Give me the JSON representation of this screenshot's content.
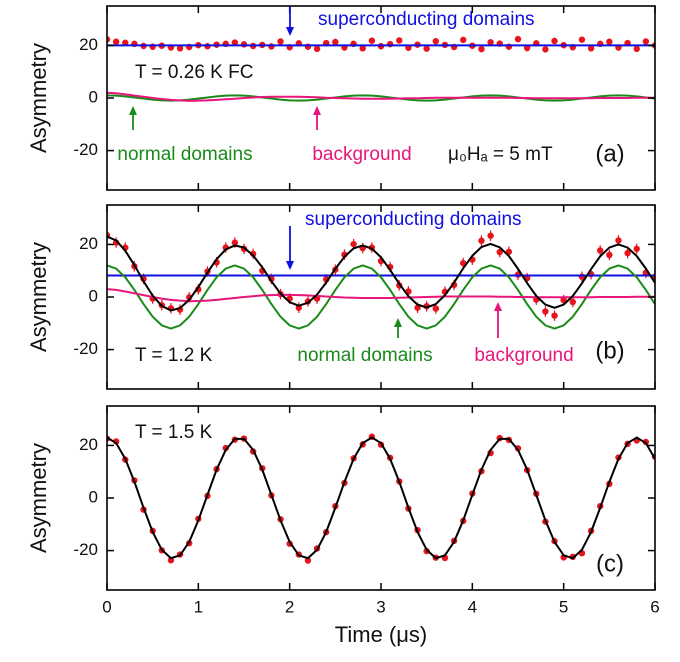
{
  "chart_data": [
    {
      "type": "line",
      "ylabel": "Asymmetry",
      "panel_label": "(a)",
      "annotations": [
        "T = 0.26 K  FC",
        "μ₀Hₐ = 5 mT"
      ],
      "xlim": [
        0,
        6
      ],
      "xticks": [
        0,
        1,
        2,
        3,
        4,
        5,
        6
      ],
      "ylim": [
        -35,
        35
      ],
      "yticks": [
        -20,
        0,
        20
      ],
      "x": [
        0,
        0.1,
        0.2,
        0.3,
        0.4,
        0.5,
        0.6,
        0.7,
        0.8,
        0.9,
        1,
        1.1,
        1.2,
        1.3,
        1.4,
        1.5,
        1.6,
        1.7,
        1.8,
        1.9,
        2,
        2.1,
        2.2,
        2.3,
        2.4,
        2.5,
        2.6,
        2.7,
        2.8,
        2.9,
        3,
        3.1,
        3.2,
        3.3,
        3.4,
        3.5,
        3.6,
        3.7,
        3.8,
        3.9,
        4,
        4.1,
        4.2,
        4.3,
        4.4,
        4.5,
        4.6,
        4.7,
        4.8,
        4.9,
        5,
        5.1,
        5.2,
        5.3,
        5.4,
        5.5,
        5.6,
        5.7,
        5.8,
        5.9,
        6
      ],
      "series": [
        {
          "color": "#e8141b",
          "mode": "markers",
          "error": 1.2,
          "values": [
            22.3,
            21.4,
            21.0,
            20.6,
            19.8,
            19.5,
            19.9,
            19.2,
            18.9,
            19.4,
            20.1,
            19.7,
            20.3,
            20.6,
            21.1,
            20.4,
            19.8,
            20.2,
            19.6,
            21.5,
            19.3,
            20.8,
            19.5,
            18.7,
            20.9,
            21.3,
            19.2,
            20.6,
            18.9,
            21.8,
            19.7,
            20.5,
            21.9,
            19.1,
            20.3,
            18.8,
            21.6,
            20.2,
            19.4,
            22.1,
            19.9,
            18.6,
            21.2,
            20.7,
            19.5,
            22.4,
            19.0,
            20.8,
            18.5,
            21.7,
            20.1,
            19.3,
            22.2,
            18.9,
            20.6,
            21.4,
            19.2,
            20.9,
            18.7,
            21.5,
            20.0
          ]
        },
        {
          "name": "superconducting domains",
          "color": "#1010e0",
          "mode": "lines",
          "x": [
            0,
            6
          ],
          "values": [
            20,
            20
          ]
        },
        {
          "name": "normal domains",
          "color": "#1a8a1a",
          "mode": "lines",
          "values": [
            1,
            0.9,
            0.6,
            0.2,
            -0.2,
            -0.6,
            -0.9,
            -1,
            -0.9,
            -0.6,
            -0.2,
            0.2,
            0.6,
            0.9,
            1,
            0.9,
            0.6,
            0.2,
            -0.2,
            -0.6,
            -0.9,
            -1,
            -0.9,
            -0.6,
            -0.2,
            0.2,
            0.6,
            0.9,
            1,
            0.9,
            0.6,
            0.2,
            -0.2,
            -0.6,
            -0.9,
            -1,
            -0.9,
            -0.6,
            -0.2,
            0.2,
            0.6,
            0.9,
            1,
            0.9,
            0.6,
            0.2,
            -0.2,
            -0.6,
            -0.9,
            -1,
            -0.9,
            -0.6,
            -0.2,
            0.2,
            0.6,
            0.9,
            1,
            0.9,
            0.6,
            0.2,
            -0.2
          ]
        },
        {
          "name": "background",
          "color": "#e8157a",
          "mode": "lines",
          "values": [
            2.0,
            1.8,
            1.4,
            0.9,
            0.5,
            0,
            -0.4,
            -0.7,
            -0.9,
            -1.1,
            -1.0,
            -0.9,
            -0.7,
            -0.5,
            -0.3,
            0,
            0.2,
            0.4,
            0.5,
            0.5,
            0.5,
            0.5,
            0.4,
            0.3,
            0.1,
            0,
            -0.1,
            -0.2,
            -0.3,
            -0.3,
            -0.3,
            -0.3,
            -0.2,
            -0.1,
            -0.1,
            0,
            0.1,
            0.1,
            0.1,
            0.1,
            0.1,
            0.1,
            0.1,
            0.1,
            0.1,
            0,
            0,
            -0.1,
            -0.1,
            -0.1,
            -0.1,
            -0.1,
            -0.1,
            -0.1,
            0,
            0,
            0,
            0,
            0.1,
            0.1,
            0.1
          ]
        }
      ]
    },
    {
      "type": "line",
      "ylabel": "Asymmetry",
      "panel_label": "(b)",
      "annotations": [
        "T = 1.2 K"
      ],
      "xlim": [
        0,
        6
      ],
      "xticks": [
        0,
        1,
        2,
        3,
        4,
        5,
        6
      ],
      "ylim": [
        -35,
        35
      ],
      "yticks": [
        -20,
        0,
        20
      ],
      "x": [
        0,
        0.1,
        0.2,
        0.3,
        0.4,
        0.5,
        0.6,
        0.7,
        0.8,
        0.9,
        1,
        1.1,
        1.2,
        1.3,
        1.4,
        1.5,
        1.6,
        1.7,
        1.8,
        1.9,
        2,
        2.1,
        2.2,
        2.3,
        2.4,
        2.5,
        2.6,
        2.7,
        2.8,
        2.9,
        3,
        3.1,
        3.2,
        3.3,
        3.4,
        3.5,
        3.6,
        3.7,
        3.8,
        3.9,
        4,
        4.1,
        4.2,
        4.3,
        4.4,
        4.5,
        4.6,
        4.7,
        4.8,
        4.9,
        5,
        5.1,
        5.2,
        5.3,
        5.4,
        5.5,
        5.6,
        5.7,
        5.8,
        5.9,
        6
      ],
      "series": [
        {
          "color": "#e8141b",
          "mode": "markers",
          "error": 2,
          "values": [
            23.5,
            20.7,
            18.8,
            11.7,
            6.9,
            -0.6,
            -3.1,
            -4.3,
            -4.8,
            -0.1,
            2.9,
            9.7,
            13.2,
            18.8,
            20.7,
            18.3,
            16.4,
            10.0,
            6.9,
            1.1,
            -0.6,
            -4.1,
            -1.7,
            -0.6,
            6.7,
            10.4,
            16.1,
            20.1,
            18.6,
            18.8,
            13.7,
            11.4,
            4.4,
            2.1,
            -4.1,
            -3.5,
            -4.4,
            2.0,
            4.6,
            12.9,
            14.2,
            21.4,
            23.3,
            17.1,
            17.2,
            8.5,
            7.2,
            -1.0,
            -5.5,
            -7.1,
            -1.2,
            -1.9,
            7.7,
            8.7,
            17.7,
            16.0,
            21.5,
            16.7,
            18.3,
            9.2,
            7.7
          ]
        },
        {
          "name": "superconducting domains",
          "color": "#1010e0",
          "mode": "lines",
          "x": [
            0,
            6
          ],
          "values": [
            8.2,
            8.2
          ]
        },
        {
          "name": "normal domains",
          "color": "#1a8a1a",
          "mode": "lines",
          "values": [
            12,
            10.8,
            7.5,
            2.7,
            -2.7,
            -7.5,
            -10.8,
            -12,
            -10.8,
            -7.5,
            -2.7,
            2.7,
            7.5,
            10.8,
            12,
            10.8,
            7.5,
            2.7,
            -2.7,
            -7.5,
            -10.8,
            -12,
            -10.8,
            -7.5,
            -2.7,
            2.7,
            7.5,
            10.8,
            12,
            10.8,
            7.5,
            2.7,
            -2.7,
            -7.5,
            -10.8,
            -12,
            -10.8,
            -7.5,
            -2.7,
            2.7,
            7.5,
            10.8,
            12,
            10.8,
            7.5,
            2.7,
            -2.7,
            -7.5,
            -10.8,
            -12,
            -10.8,
            -7.5,
            -2.7,
            2.7,
            7.5,
            10.8,
            12,
            10.8,
            7.5,
            2.7,
            -2.7
          ]
        },
        {
          "name": "background",
          "color": "#e8157a",
          "mode": "lines",
          "values": [
            3.0,
            2.7,
            2.1,
            1.4,
            0.7,
            0,
            -0.6,
            -1.1,
            -1.4,
            -1.6,
            -1.5,
            -1.4,
            -1.1,
            -0.7,
            -0.4,
            0,
            0.3,
            0.6,
            0.7,
            0.8,
            0.8,
            0.7,
            0.6,
            0.4,
            0.2,
            0,
            -0.2,
            -0.3,
            -0.4,
            -0.4,
            -0.4,
            -0.4,
            -0.3,
            -0.2,
            -0.1,
            0,
            0.1,
            0.2,
            0.2,
            0.2,
            0.2,
            0.2,
            0.2,
            0.1,
            0.1,
            0,
            0,
            -0.1,
            -0.1,
            -0.1,
            -0.1,
            -0.1,
            -0.1,
            -0.1,
            0,
            0,
            0,
            0,
            0.1,
            0.1,
            0.1
          ]
        },
        {
          "color": "#000000",
          "mode": "lines",
          "values": [
            23.0,
            21.5,
            17.6,
            12.1,
            6.0,
            0.5,
            -3.4,
            -5.1,
            -4.2,
            -1.1,
            3.8,
            9.3,
            14.4,
            18.1,
            19.6,
            18.8,
            15.8,
            11.3,
            6.0,
            1.3,
            -2.0,
            -3.3,
            -2.2,
            0.9,
            5.5,
            10.7,
            15.3,
            18.5,
            19.6,
            18.4,
            15.1,
            10.3,
            5.0,
            0.3,
            -2.9,
            -4.0,
            -2.7,
            0.7,
            5.5,
            10.9,
            15.7,
            19.0,
            20.2,
            18.9,
            15.6,
            10.7,
            5.3,
            0.4,
            -2.9,
            -4.1,
            -2.9,
            0.4,
            5.2,
            10.6,
            15.5,
            18.8,
            20.0,
            18.8,
            15.6,
            10.8,
            5.4
          ]
        }
      ]
    },
    {
      "type": "line",
      "ylabel": "Asymmetry",
      "xlabel": "Time (μs)",
      "panel_label": "(c)",
      "annotations": [
        "T = 1.5 K"
      ],
      "xlim": [
        0,
        6
      ],
      "xticks": [
        0,
        1,
        2,
        3,
        4,
        5,
        6
      ],
      "ylim": [
        -35,
        35
      ],
      "yticks": [
        -20,
        0,
        20
      ],
      "x": [
        0,
        0.1,
        0.2,
        0.3,
        0.4,
        0.5,
        0.6,
        0.7,
        0.8,
        0.9,
        1,
        1.1,
        1.2,
        1.3,
        1.4,
        1.5,
        1.6,
        1.7,
        1.8,
        1.9,
        2,
        2.1,
        2.2,
        2.3,
        2.4,
        2.5,
        2.6,
        2.7,
        2.8,
        2.9,
        3,
        3.1,
        3.2,
        3.3,
        3.4,
        3.5,
        3.6,
        3.7,
        3.8,
        3.9,
        4,
        4.1,
        4.2,
        4.3,
        4.4,
        4.5,
        4.6,
        4.7,
        4.8,
        4.9,
        5,
        5.1,
        5.2,
        5.3,
        5.4,
        5.5,
        5.6,
        5.7,
        5.8,
        5.9,
        6
      ],
      "series": [
        {
          "color": "#e8141b",
          "mode": "markers",
          "error": 1,
          "values": [
            22.6,
            21.5,
            14.6,
            6.7,
            -4.4,
            -12.5,
            -19.9,
            -23.7,
            -21.5,
            -17.2,
            -7.9,
            0.8,
            11.0,
            19.0,
            22.2,
            22.6,
            17.7,
            11.3,
            1.0,
            -8.1,
            -17.4,
            -21.5,
            -23.8,
            -19.2,
            -13.0,
            -3.1,
            5.7,
            15.1,
            20.4,
            23.3,
            20.3,
            15.3,
            6.3,
            -4.0,
            -12.2,
            -20.2,
            -22.7,
            -22.8,
            -16.3,
            -8.7,
            1.7,
            10.2,
            17.1,
            22.8,
            22.1,
            18.9,
            10.6,
            1.6,
            -9.0,
            -16.4,
            -22.6,
            -22.4,
            -21.0,
            -12.5,
            -3.1,
            5.4,
            15.4,
            20.6,
            21.9,
            21.3,
            15.7
          ]
        },
        {
          "color": "#000000",
          "mode": "lines",
          "values": [
            23.0,
            20.9,
            14.9,
            6.2,
            -3.7,
            -12.9,
            -19.7,
            -22.9,
            -21.8,
            -16.7,
            -8.5,
            1.2,
            10.8,
            18.3,
            22.5,
            22.5,
            18.3,
            10.8,
            1.2,
            -8.5,
            -16.7,
            -21.8,
            -22.9,
            -19.7,
            -12.9,
            -3.7,
            6.1,
            14.9,
            20.9,
            23.0,
            20.9,
            14.9,
            6.2,
            -3.7,
            -12.9,
            -19.7,
            -22.9,
            -21.8,
            -16.7,
            -8.5,
            1.2,
            10.8,
            18.3,
            22.5,
            22.5,
            18.3,
            10.8,
            1.2,
            -8.5,
            -16.7,
            -21.8,
            -22.9,
            -19.7,
            -12.9,
            -3.7,
            6.1,
            14.9,
            20.9,
            23.0,
            20.9,
            14.9
          ]
        }
      ]
    }
  ]
}
